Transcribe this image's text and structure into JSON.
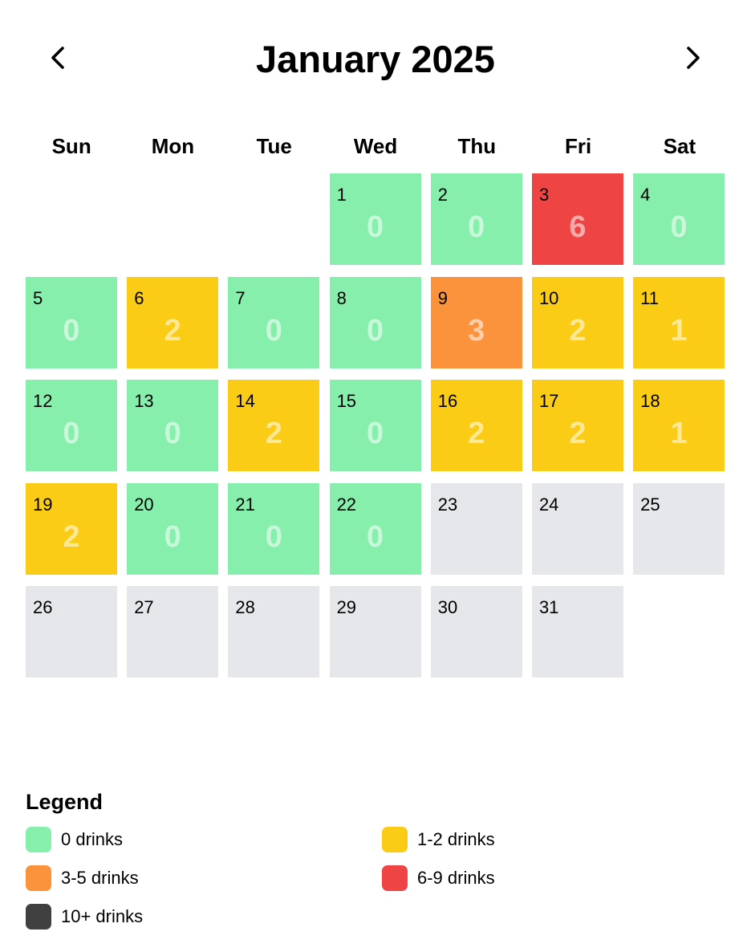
{
  "header": {
    "title": "January 2025",
    "prev_icon": "chevron-left-icon",
    "next_icon": "chevron-right-icon"
  },
  "weekdays": [
    "Sun",
    "Mon",
    "Tue",
    "Wed",
    "Thu",
    "Fri",
    "Sat"
  ],
  "colors": {
    "zero": "#86efac",
    "low": "#facc15",
    "mid": "#fb923c",
    "high": "#ef4444",
    "max": "#404040",
    "none": "#e5e7eb"
  },
  "calendar": {
    "leading_blanks": 3,
    "days": [
      {
        "day": "1",
        "count": "0",
        "level": "zero"
      },
      {
        "day": "2",
        "count": "0",
        "level": "zero"
      },
      {
        "day": "3",
        "count": "6",
        "level": "high"
      },
      {
        "day": "4",
        "count": "0",
        "level": "zero"
      },
      {
        "day": "5",
        "count": "0",
        "level": "zero"
      },
      {
        "day": "6",
        "count": "2",
        "level": "low"
      },
      {
        "day": "7",
        "count": "0",
        "level": "zero"
      },
      {
        "day": "8",
        "count": "0",
        "level": "zero"
      },
      {
        "day": "9",
        "count": "3",
        "level": "mid"
      },
      {
        "day": "10",
        "count": "2",
        "level": "low"
      },
      {
        "day": "11",
        "count": "1",
        "level": "low"
      },
      {
        "day": "12",
        "count": "0",
        "level": "zero"
      },
      {
        "day": "13",
        "count": "0",
        "level": "zero"
      },
      {
        "day": "14",
        "count": "2",
        "level": "low"
      },
      {
        "day": "15",
        "count": "0",
        "level": "zero"
      },
      {
        "day": "16",
        "count": "2",
        "level": "low"
      },
      {
        "day": "17",
        "count": "2",
        "level": "low"
      },
      {
        "day": "18",
        "count": "1",
        "level": "low"
      },
      {
        "day": "19",
        "count": "2",
        "level": "low"
      },
      {
        "day": "20",
        "count": "0",
        "level": "zero"
      },
      {
        "day": "21",
        "count": "0",
        "level": "zero"
      },
      {
        "day": "22",
        "count": "0",
        "level": "zero"
      },
      {
        "day": "23",
        "count": "",
        "level": "none"
      },
      {
        "day": "24",
        "count": "",
        "level": "none"
      },
      {
        "day": "25",
        "count": "",
        "level": "none"
      },
      {
        "day": "26",
        "count": "",
        "level": "none"
      },
      {
        "day": "27",
        "count": "",
        "level": "none"
      },
      {
        "day": "28",
        "count": "",
        "level": "none"
      },
      {
        "day": "29",
        "count": "",
        "level": "none"
      },
      {
        "day": "30",
        "count": "",
        "level": "none"
      },
      {
        "day": "31",
        "count": "",
        "level": "none"
      }
    ]
  },
  "legend": {
    "title": "Legend",
    "items": [
      {
        "label": "0 drinks",
        "level": "zero"
      },
      {
        "label": "1-2 drinks",
        "level": "low"
      },
      {
        "label": "3-5 drinks",
        "level": "mid"
      },
      {
        "label": "6-9 drinks",
        "level": "high"
      },
      {
        "label": "10+ drinks",
        "level": "max"
      }
    ]
  }
}
